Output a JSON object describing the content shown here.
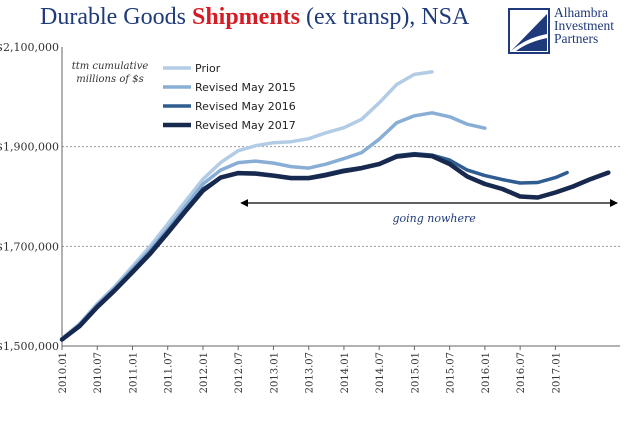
{
  "title": {
    "part1": "Durable Goods ",
    "part2": "Shipments",
    "part3": " (ex transp), NSA"
  },
  "logo": {
    "line1": "Alhambra",
    "line2": "Investment",
    "line3": "Partners"
  },
  "colors": {
    "title": "#1f3a7a",
    "highlight": "#d51c24",
    "prior": "#b3cce6",
    "rev2015": "#88aed6",
    "rev2016": "#2f5c91",
    "rev2017": "#17294e"
  },
  "chart_data": {
    "type": "line",
    "ylim": [
      1500000,
      2100000
    ],
    "yticks": [
      1500000,
      1700000,
      1900000,
      2100000
    ],
    "ytick_labels": [
      "$1,500,000",
      "$1,700,000",
      "$1,900,000",
      "$2,100,000"
    ],
    "xlim": [
      "2010.01",
      "2017.12"
    ],
    "xtick_labels": [
      "2010.01",
      "2010.07",
      "2011.01",
      "2011.07",
      "2012.01",
      "2012.07",
      "2013.01",
      "2013.07",
      "2014.01",
      "2014.07",
      "2015.01",
      "2015.07",
      "2016.01",
      "2016.07",
      "2017.01"
    ],
    "gridlines": "horizontal dashed",
    "annotation_unit": "ttm cumulative millions of $s",
    "legend": [
      "Prior",
      "Revised May 2015",
      "Revised May 2016",
      "Revised May 2017"
    ],
    "arrow_text": "going nowhere",
    "arrow_range": [
      "2012.07",
      "2017.12"
    ],
    "series": [
      {
        "name": "Prior",
        "points": [
          [
            "2010.01",
            1515000
          ],
          [
            "2010.04",
            1545000
          ],
          [
            "2010.07",
            1585000
          ],
          [
            "2010.10",
            1620000
          ],
          [
            "2011.01",
            1660000
          ],
          [
            "2011.04",
            1700000
          ],
          [
            "2011.07",
            1745000
          ],
          [
            "2011.10",
            1790000
          ],
          [
            "2012.01",
            1835000
          ],
          [
            "2012.04",
            1868000
          ],
          [
            "2012.07",
            1892000
          ],
          [
            "2012.10",
            1902000
          ],
          [
            "2013.01",
            1908000
          ],
          [
            "2013.04",
            1910000
          ],
          [
            "2013.07",
            1916000
          ],
          [
            "2013.10",
            1928000
          ],
          [
            "2014.01",
            1938000
          ],
          [
            "2014.04",
            1955000
          ],
          [
            "2014.07",
            1988000
          ],
          [
            "2014.10",
            2025000
          ],
          [
            "2015.01",
            2045000
          ],
          [
            "2015.04",
            2050000
          ]
        ]
      },
      {
        "name": "Revised May 2015",
        "points": [
          [
            "2010.01",
            1513000
          ],
          [
            "2010.04",
            1543000
          ],
          [
            "2010.07",
            1582000
          ],
          [
            "2010.10",
            1617000
          ],
          [
            "2011.01",
            1655000
          ],
          [
            "2011.04",
            1693000
          ],
          [
            "2011.07",
            1735000
          ],
          [
            "2011.10",
            1780000
          ],
          [
            "2012.01",
            1825000
          ],
          [
            "2012.04",
            1853000
          ],
          [
            "2012.07",
            1868000
          ],
          [
            "2012.10",
            1871000
          ],
          [
            "2013.01",
            1867000
          ],
          [
            "2013.04",
            1860000
          ],
          [
            "2013.07",
            1857000
          ],
          [
            "2013.10",
            1865000
          ],
          [
            "2014.01",
            1876000
          ],
          [
            "2014.04",
            1888000
          ],
          [
            "2014.07",
            1915000
          ],
          [
            "2014.10",
            1948000
          ],
          [
            "2015.01",
            1962000
          ],
          [
            "2015.04",
            1968000
          ],
          [
            "2015.07",
            1960000
          ],
          [
            "2015.10",
            1945000
          ],
          [
            "2016.01",
            1937000
          ]
        ]
      },
      {
        "name": "Revised May 2016",
        "points": [
          [
            "2010.01",
            1513000
          ],
          [
            "2010.04",
            1542000
          ],
          [
            "2010.07",
            1580000
          ],
          [
            "2010.10",
            1614000
          ],
          [
            "2011.01",
            1651000
          ],
          [
            "2011.04",
            1688000
          ],
          [
            "2011.07",
            1730000
          ],
          [
            "2011.10",
            1773000
          ],
          [
            "2012.01",
            1815000
          ],
          [
            "2012.04",
            1838000
          ],
          [
            "2012.07",
            1848000
          ],
          [
            "2012.10",
            1847000
          ],
          [
            "2013.01",
            1842000
          ],
          [
            "2013.04",
            1838000
          ],
          [
            "2013.07",
            1838000
          ],
          [
            "2013.10",
            1845000
          ],
          [
            "2014.01",
            1853000
          ],
          [
            "2014.04",
            1858000
          ],
          [
            "2014.07",
            1866000
          ],
          [
            "2014.10",
            1882000
          ],
          [
            "2015.01",
            1886000
          ],
          [
            "2015.04",
            1883000
          ],
          [
            "2015.07",
            1873000
          ],
          [
            "2015.10",
            1853000
          ],
          [
            "2016.01",
            1842000
          ],
          [
            "2016.04",
            1834000
          ],
          [
            "2016.07",
            1827000
          ],
          [
            "2016.10",
            1828000
          ],
          [
            "2017.01",
            1838000
          ],
          [
            "2017.03",
            1848000
          ]
        ]
      },
      {
        "name": "Revised May 2017",
        "points": [
          [
            "2010.01",
            1513000
          ],
          [
            "2010.04",
            1540000
          ],
          [
            "2010.07",
            1578000
          ],
          [
            "2010.10",
            1612000
          ],
          [
            "2011.01",
            1648000
          ],
          [
            "2011.04",
            1685000
          ],
          [
            "2011.07",
            1727000
          ],
          [
            "2011.10",
            1770000
          ],
          [
            "2012.01",
            1812000
          ],
          [
            "2012.04",
            1838000
          ],
          [
            "2012.07",
            1847000
          ],
          [
            "2012.10",
            1846000
          ],
          [
            "2013.01",
            1842000
          ],
          [
            "2013.04",
            1837000
          ],
          [
            "2013.07",
            1837000
          ],
          [
            "2013.10",
            1843000
          ],
          [
            "2014.01",
            1851000
          ],
          [
            "2014.04",
            1857000
          ],
          [
            "2014.07",
            1865000
          ],
          [
            "2014.10",
            1880000
          ],
          [
            "2015.01",
            1884000
          ],
          [
            "2015.04",
            1881000
          ],
          [
            "2015.07",
            1865000
          ],
          [
            "2015.10",
            1840000
          ],
          [
            "2016.01",
            1825000
          ],
          [
            "2016.04",
            1815000
          ],
          [
            "2016.07",
            1800000
          ],
          [
            "2016.10",
            1798000
          ],
          [
            "2017.01",
            1808000
          ],
          [
            "2017.04",
            1820000
          ],
          [
            "2017.07",
            1835000
          ],
          [
            "2017.10",
            1848000
          ]
        ]
      }
    ]
  }
}
